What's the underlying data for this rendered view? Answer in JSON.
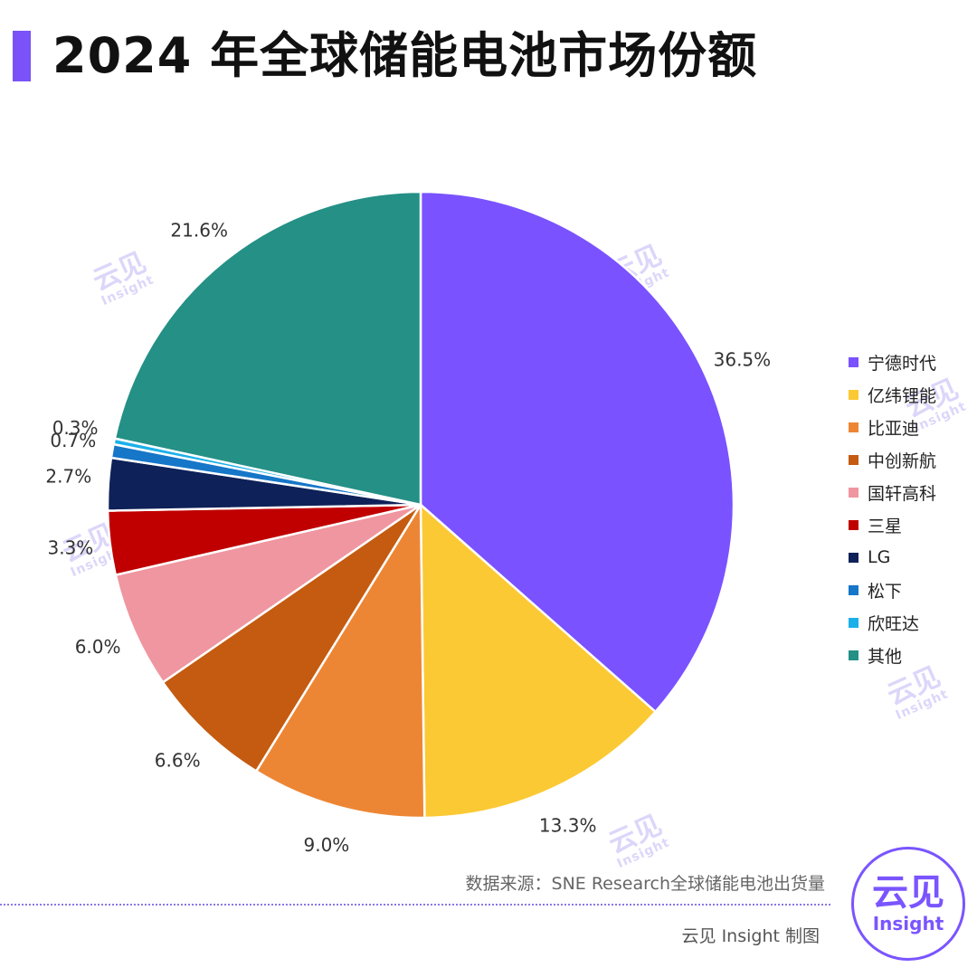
{
  "header": {
    "title": "2024 年全球储能电池市场份额",
    "accent": "#7b52f7"
  },
  "chart_data": {
    "type": "pie",
    "start_angle_deg": 0,
    "direction": "clockwise",
    "legend_position": "right",
    "slices": [
      {
        "label": "宁德时代",
        "value": 36.5,
        "value_label": "36.5%",
        "color": "#7a52ff"
      },
      {
        "label": "亿纬锂能",
        "value": 13.3,
        "value_label": "13.3%",
        "color": "#fbc933"
      },
      {
        "label": "比亚迪",
        "value": 9.0,
        "value_label": "9.0%",
        "color": "#ed8634"
      },
      {
        "label": "中创新航",
        "value": 6.6,
        "value_label": "6.6%",
        "color": "#c45b10"
      },
      {
        "label": "国轩高科",
        "value": 6.0,
        "value_label": "6.0%",
        "color": "#ef96a0"
      },
      {
        "label": "三星",
        "value": 3.3,
        "value_label": "3.3%",
        "color": "#c00000"
      },
      {
        "label": "LG",
        "value": 2.7,
        "value_label": "2.7%",
        "color": "#0e2158"
      },
      {
        "label": "松下",
        "value": 0.7,
        "value_label": "0.7%",
        "color": "#1676c8"
      },
      {
        "label": "欣旺达",
        "value": 0.3,
        "value_label": "0.3%",
        "color": "#1bb0ea"
      },
      {
        "label": "其他",
        "value": 21.6,
        "value_label": "21.6%",
        "color": "#249086"
      }
    ]
  },
  "footer": {
    "source": "数据来源：SNE Research全球储能电池出货量",
    "credit": "云见 Insight 制图"
  },
  "brand": {
    "name_cn": "云见",
    "name_en": "Insight"
  }
}
